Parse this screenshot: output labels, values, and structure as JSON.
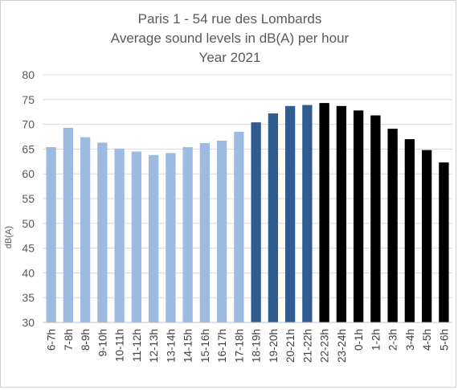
{
  "chart_data": {
    "type": "bar",
    "title_lines": [
      "Paris 1 - 54 rue des Lombards",
      "Average sound levels in dB(A) per hour",
      "Year 2021"
    ],
    "ylabel": "dB(A)",
    "xlabel": "",
    "ylim": [
      30,
      80
    ],
    "yticks": [
      30,
      35,
      40,
      45,
      50,
      55,
      60,
      65,
      70,
      75,
      80
    ],
    "grid": true,
    "legend": "none",
    "categories": [
      "6-7h",
      "7-8h",
      "8-9h",
      "9-10h",
      "10-11h",
      "11-12h",
      "12-13h",
      "13-14h",
      "14-15h",
      "15-16h",
      "16-17h",
      "17-18h",
      "18-19h",
      "19-20h",
      "20-21h",
      "21-22h",
      "22-23h",
      "23-24h",
      "0-1h",
      "1-2h",
      "2-3h",
      "3-4h",
      "4-5h",
      "5-6h"
    ],
    "values": [
      65.4,
      69.3,
      67.4,
      66.3,
      65.1,
      64.5,
      63.8,
      64.2,
      65.4,
      66.2,
      66.7,
      68.5,
      70.4,
      72.2,
      73.7,
      73.9,
      74.3,
      73.7,
      72.8,
      71.8,
      69.1,
      67.0,
      64.8,
      62.3
    ],
    "bar_colors": [
      "#9dbbe1",
      "#9dbbe1",
      "#9dbbe1",
      "#9dbbe1",
      "#9dbbe1",
      "#9dbbe1",
      "#9dbbe1",
      "#9dbbe1",
      "#9dbbe1",
      "#9dbbe1",
      "#9dbbe1",
      "#9dbbe1",
      "#2f5d92",
      "#2f5d92",
      "#2f5d92",
      "#2f5d92",
      "#000000",
      "#000000",
      "#000000",
      "#000000",
      "#000000",
      "#000000",
      "#000000",
      "#000000"
    ]
  }
}
